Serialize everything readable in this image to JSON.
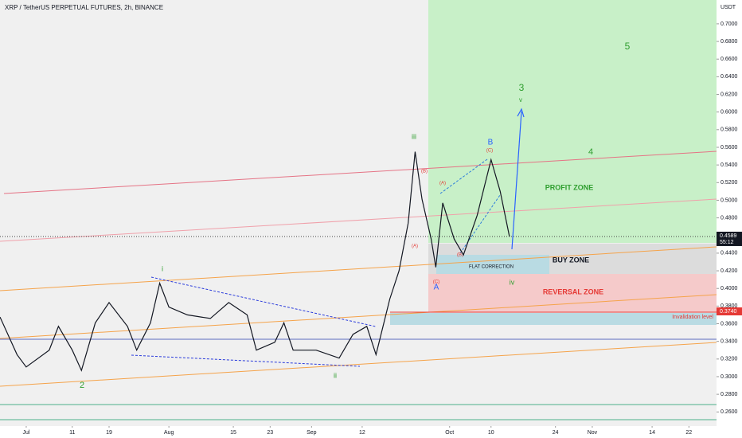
{
  "chart_data": {
    "type": "line",
    "title": "XRP / TetherUS PERPETUAL FUTURES, 2h, BINANCE",
    "currency": "USDT",
    "last_price": {
      "value": 0.4589,
      "label": "0.4589"
    },
    "countdown": "55:12",
    "invalidation_price": {
      "value": 0.374,
      "label": "0.3740"
    },
    "xlim": [
      -5.7,
      150
    ],
    "xticks": [
      {
        "value": 0,
        "label": "Jul"
      },
      {
        "value": 10,
        "label": "11"
      },
      {
        "value": 18,
        "label": "19"
      },
      {
        "value": 31,
        "label": "Aug"
      },
      {
        "value": 45,
        "label": "15"
      },
      {
        "value": 53,
        "label": "23"
      },
      {
        "value": 62,
        "label": "Sep"
      },
      {
        "value": 73,
        "label": "12"
      },
      {
        "value": 92,
        "label": "Oct"
      },
      {
        "value": 101,
        "label": "10"
      },
      {
        "value": 115,
        "label": "24"
      },
      {
        "value": 123,
        "label": "Nov"
      },
      {
        "value": 136,
        "label": "14"
      },
      {
        "value": 144,
        "label": "22"
      }
    ],
    "ylim": [
      0.244,
      0.727
    ],
    "yticks": [
      {
        "value": 0.26,
        "label": "0.2600"
      },
      {
        "value": 0.28,
        "label": "0.2800"
      },
      {
        "value": 0.3,
        "label": "0.3000"
      },
      {
        "value": 0.32,
        "label": "0.3200"
      },
      {
        "value": 0.34,
        "label": "0.3400"
      },
      {
        "value": 0.36,
        "label": "0.3600"
      },
      {
        "value": 0.38,
        "label": "0.3800"
      },
      {
        "value": 0.4,
        "label": "0.4000"
      },
      {
        "value": 0.42,
        "label": "0.4200"
      },
      {
        "value": 0.44,
        "label": "0.4400"
      },
      {
        "value": 0.48,
        "label": "0.4800"
      },
      {
        "value": 0.5,
        "label": "0.5000"
      },
      {
        "value": 0.52,
        "label": "0.5200"
      },
      {
        "value": 0.54,
        "label": "0.5400"
      },
      {
        "value": 0.56,
        "label": "0.5600"
      },
      {
        "value": 0.58,
        "label": "0.5800"
      },
      {
        "value": 0.6,
        "label": "0.6000"
      },
      {
        "value": 0.62,
        "label": "0.6200"
      },
      {
        "value": 0.64,
        "label": "0.6400"
      },
      {
        "value": 0.66,
        "label": "0.6600"
      },
      {
        "value": 0.68,
        "label": "0.6800"
      },
      {
        "value": 0.7,
        "label": "0.7000"
      }
    ],
    "series": [
      {
        "color": "#131722",
        "x": [
          -5.7,
          -2,
          0,
          5,
          7,
          10,
          12,
          15,
          18,
          22,
          24,
          27,
          29,
          31,
          35,
          40,
          44,
          48,
          50,
          54,
          56,
          58,
          63,
          68,
          71,
          74,
          76,
          79,
          81,
          83,
          84.5,
          86,
          88,
          89,
          90.5,
          93,
          95,
          98,
          101,
          103,
          105
        ],
        "values": [
          0.3676,
          0.325,
          0.311,
          0.33,
          0.357,
          0.33,
          0.307,
          0.361,
          0.384,
          0.357,
          0.33,
          0.361,
          0.406,
          0.379,
          0.37,
          0.366,
          0.384,
          0.37,
          0.33,
          0.339,
          0.361,
          0.33,
          0.33,
          0.321,
          0.348,
          0.357,
          0.325,
          0.388,
          0.42,
          0.474,
          0.555,
          0.501,
          0.456,
          0.424,
          0.497,
          0.456,
          0.438,
          0.483,
          0.546,
          0.51,
          0.4589
        ]
      }
    ],
    "annotations": [
      "PROFIT ZONE",
      "BUY ZONE",
      "REVERSAL ZONE",
      "FLAT CORRECTION",
      "Invalidation level",
      "5",
      "3",
      "4",
      "2",
      "i",
      "ii",
      "iii",
      "iv",
      "v",
      "A",
      "B",
      "(A)",
      "(B)",
      "(C)",
      "(A)",
      "(B)",
      "(C)"
    ]
  }
}
